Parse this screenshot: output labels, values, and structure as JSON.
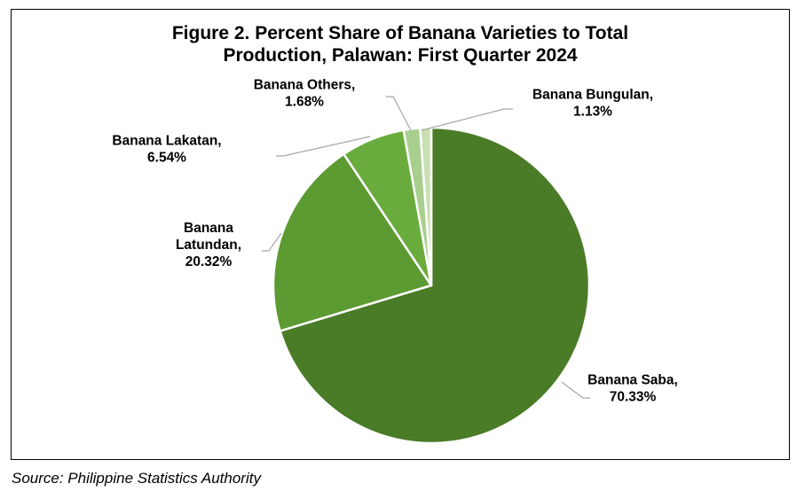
{
  "chart_data": {
    "type": "pie",
    "title_lines": [
      "Figure 2. Percent Share of Banana Varieties to Total",
      "Production, Palawan: First Quarter 2024"
    ],
    "unit": "%",
    "slices": [
      {
        "label_lines": [
          "Banana Saba,"
        ],
        "value_text": "70.33%",
        "value": 70.33,
        "color": "#4a7b27"
      },
      {
        "label_lines": [
          "Banana",
          "Latundan,"
        ],
        "value_text": "20.32%",
        "value": 20.32,
        "color": "#5c9a32"
      },
      {
        "label_lines": [
          "Banana Lakatan,"
        ],
        "value_text": "6.54%",
        "value": 6.54,
        "color": "#6aab3e"
      },
      {
        "label_lines": [
          "Banana Others,"
        ],
        "value_text": "1.68%",
        "value": 1.68,
        "color": "#a9cf8e"
      },
      {
        "label_lines": [
          "Banana Bungulan,"
        ],
        "value_text": "1.13%",
        "value": 1.13,
        "color": "#c8e0b4"
      }
    ]
  },
  "footer": {
    "source": "Source: Philippine Statistics Authority"
  }
}
